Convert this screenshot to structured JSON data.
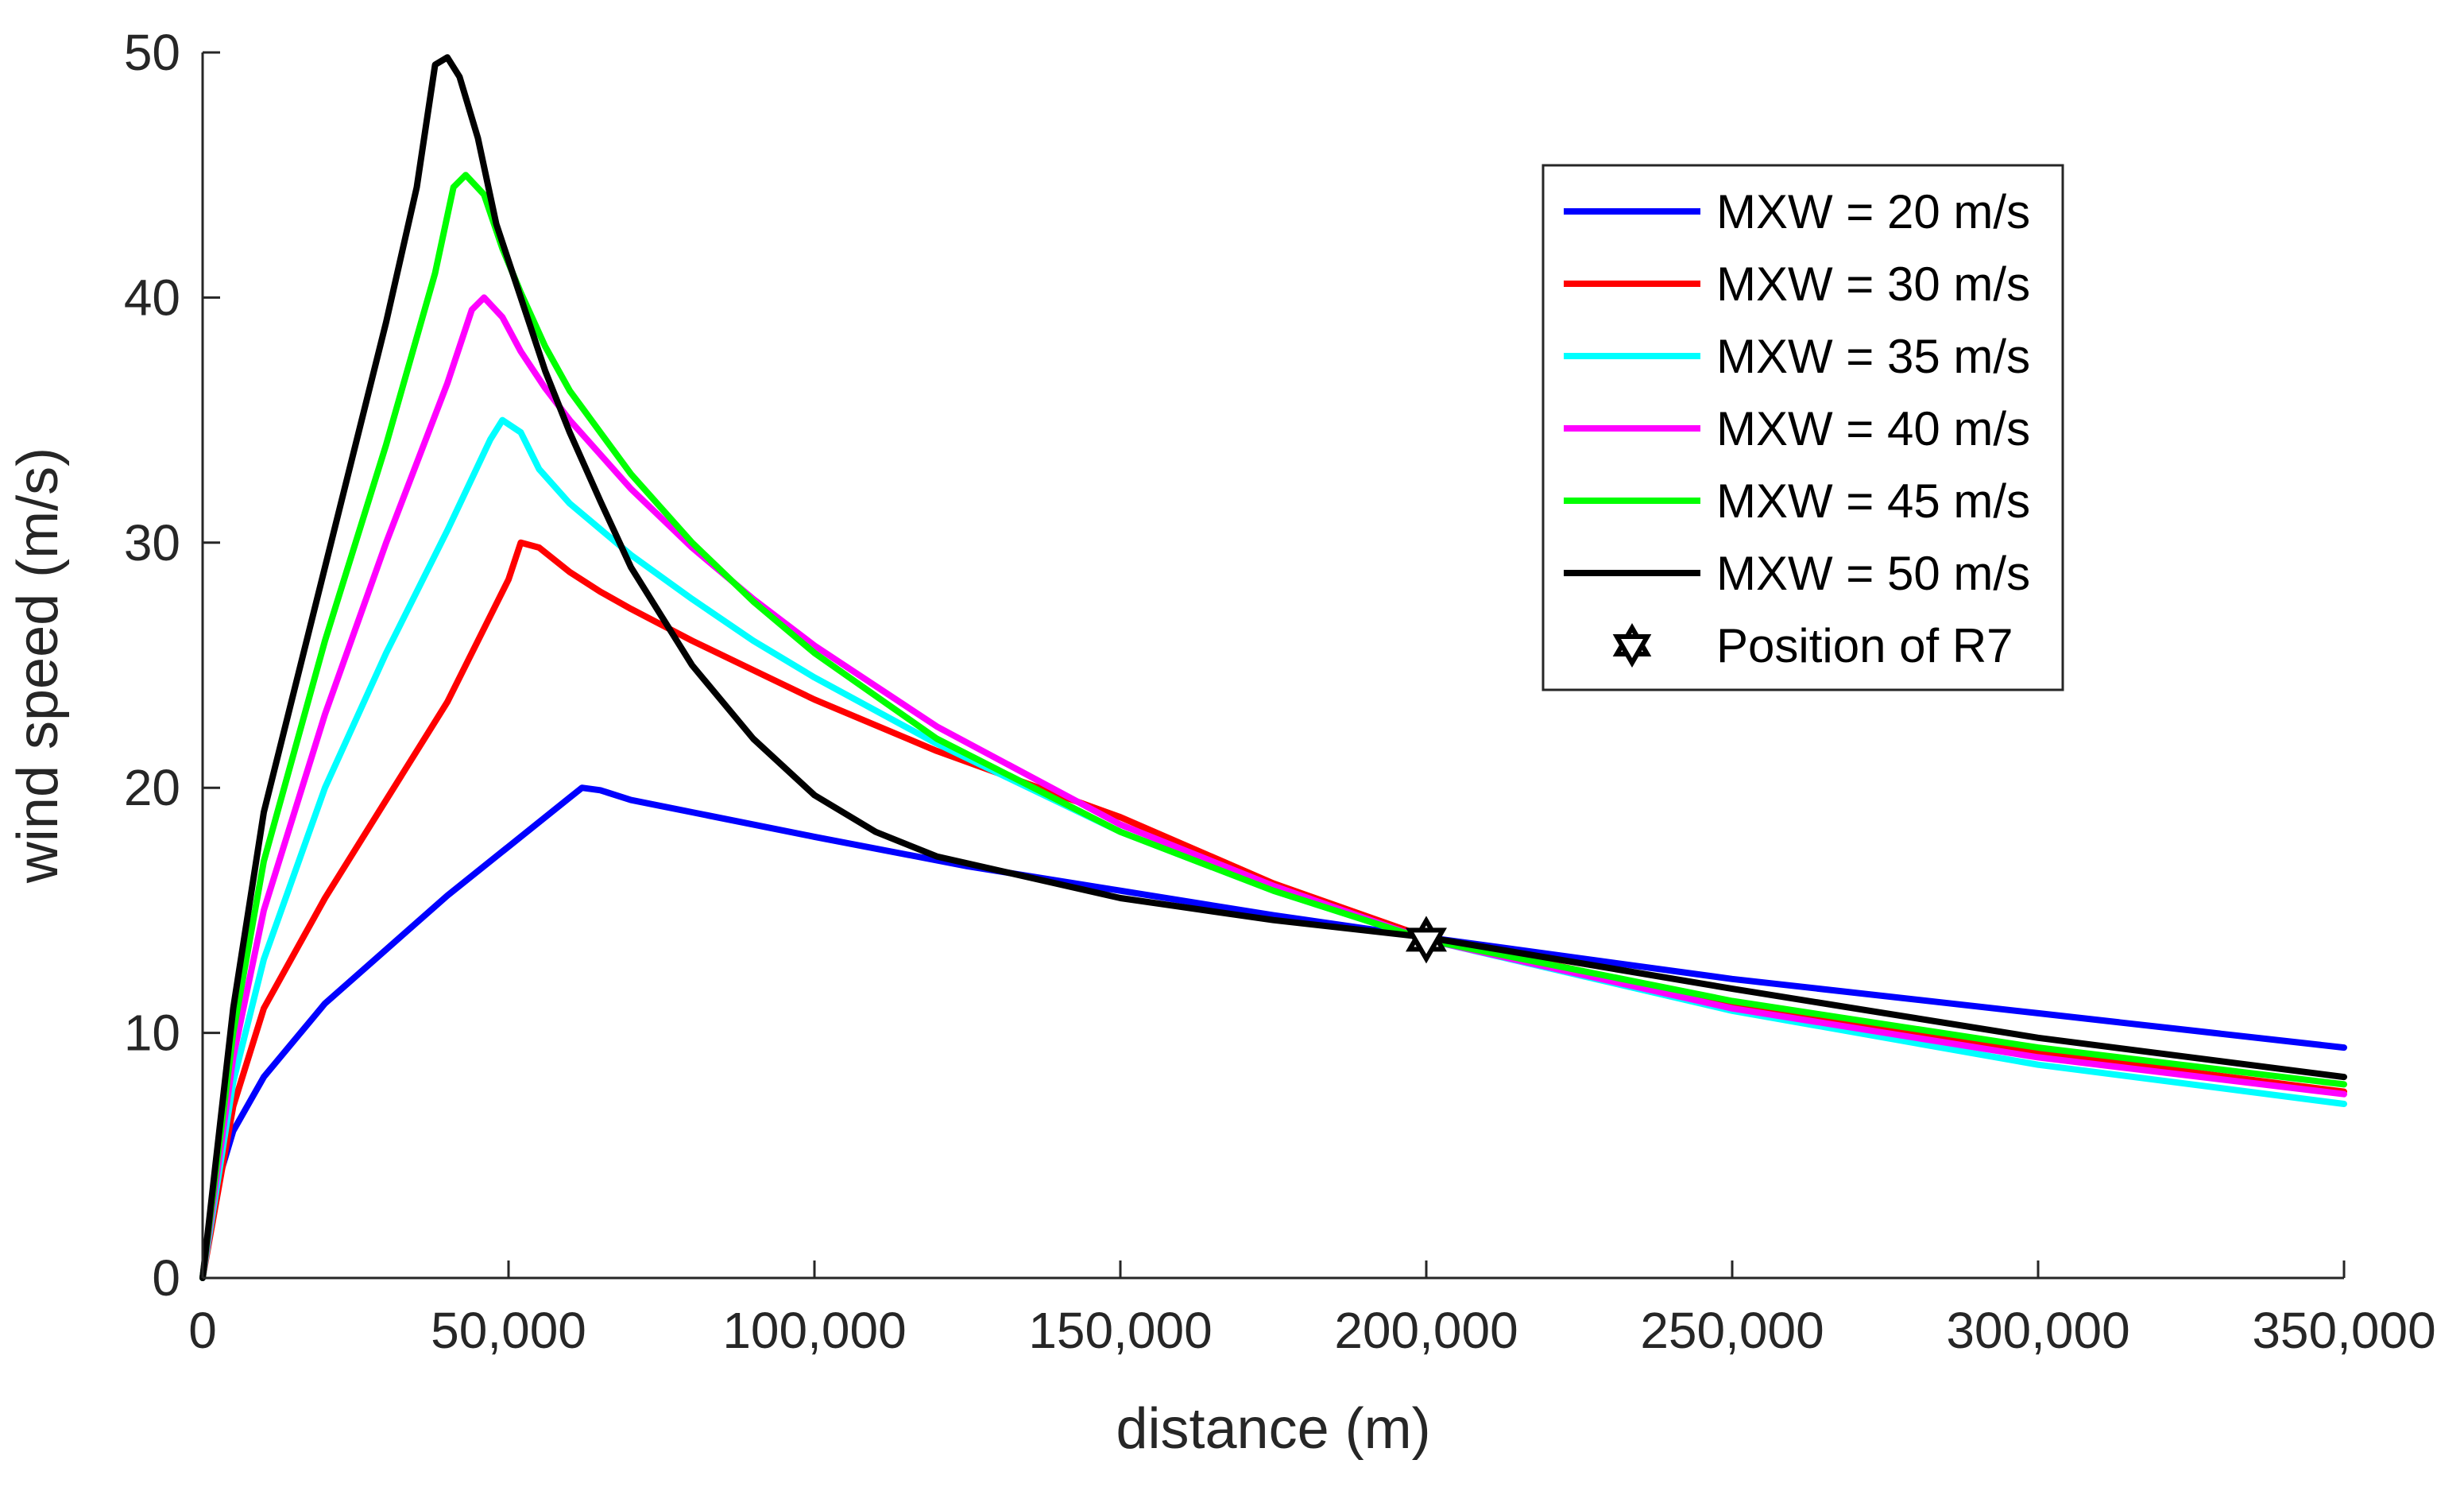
{
  "chart_data": {
    "type": "line",
    "title": "",
    "xlabel": "distance (m)",
    "ylabel": "wind speed (m/s)",
    "xlim": [
      0,
      350000
    ],
    "ylim": [
      0,
      50
    ],
    "xticks": [
      0,
      50000,
      100000,
      150000,
      200000,
      250000,
      300000,
      350000
    ],
    "xtick_labels": [
      "0",
      "50,000",
      "100,000",
      "150,000",
      "200,000",
      "250,000",
      "300,000",
      "350,000"
    ],
    "yticks": [
      0,
      10,
      20,
      30,
      40,
      50
    ],
    "ytick_labels": [
      "0",
      "10",
      "20",
      "30",
      "40",
      "50"
    ],
    "grid": false,
    "legend_position": "top-right",
    "series": [
      {
        "name": "MXW = 20 m/s",
        "color": "#0000ff",
        "x": [
          0,
          2000,
          5000,
          10000,
          20000,
          30000,
          40000,
          50000,
          60000,
          62000,
          65000,
          70000,
          80000,
          100000,
          125000,
          150000,
          175000,
          200000,
          250000,
          300000,
          350000
        ],
        "y": [
          0,
          3.5,
          6,
          8.2,
          11.2,
          13.4,
          15.6,
          17.6,
          19.6,
          20,
          19.9,
          19.5,
          19,
          18,
          16.8,
          15.8,
          14.8,
          13.9,
          12.2,
          10.8,
          9.4
        ]
      },
      {
        "name": "MXW = 30 m/s",
        "color": "#ff0000",
        "x": [
          0,
          5000,
          10000,
          20000,
          30000,
          40000,
          50000,
          52000,
          55000,
          60000,
          65000,
          70000,
          80000,
          90000,
          100000,
          120000,
          150000,
          175000,
          200000,
          250000,
          300000,
          350000
        ],
        "y": [
          0,
          7,
          11,
          15.5,
          19.5,
          23.5,
          28.5,
          30,
          29.8,
          28.8,
          28,
          27.3,
          26,
          24.8,
          23.6,
          21.5,
          18.8,
          16.1,
          13.9,
          11.2,
          9.2,
          7.6
        ]
      },
      {
        "name": "MXW = 35 m/s",
        "color": "#00ffff",
        "x": [
          0,
          5000,
          10000,
          20000,
          30000,
          40000,
          47000,
          49000,
          52000,
          55000,
          60000,
          70000,
          80000,
          90000,
          100000,
          120000,
          150000,
          175000,
          200000,
          250000,
          300000,
          350000
        ],
        "y": [
          0,
          8,
          13,
          20,
          25.5,
          30.5,
          34.2,
          35,
          34.5,
          33,
          31.6,
          29.5,
          27.7,
          26,
          24.5,
          21.8,
          18.2,
          15.8,
          13.8,
          10.9,
          8.7,
          7.1
        ]
      },
      {
        "name": "MXW = 40 m/s",
        "color": "#ff00ff",
        "x": [
          0,
          5000,
          10000,
          20000,
          30000,
          40000,
          44000,
          46000,
          49000,
          52000,
          56000,
          60000,
          70000,
          80000,
          90000,
          100000,
          120000,
          150000,
          175000,
          200000,
          250000,
          300000,
          350000
        ],
        "y": [
          0,
          9,
          15,
          23,
          30,
          36.5,
          39.5,
          40,
          39.2,
          37.8,
          36.3,
          35,
          32.2,
          29.8,
          27.7,
          25.8,
          22.5,
          18.5,
          16,
          13.8,
          11,
          9,
          7.5
        ]
      },
      {
        "name": "MXW = 45 m/s",
        "color": "#00ff00",
        "x": [
          0,
          5000,
          10000,
          20000,
          30000,
          38000,
          41000,
          43000,
          46000,
          49000,
          52000,
          56000,
          60000,
          70000,
          80000,
          90000,
          100000,
          120000,
          150000,
          175000,
          200000,
          250000,
          300000,
          350000
        ],
        "y": [
          0,
          10,
          17,
          26,
          34,
          41,
          44.5,
          45,
          44.2,
          42,
          40.2,
          38,
          36.2,
          32.8,
          30,
          27.6,
          25.5,
          22,
          18.2,
          15.8,
          13.8,
          11.3,
          9.4,
          7.9
        ]
      },
      {
        "name": "MXW = 50 m/s",
        "color": "#000000",
        "x": [
          0,
          5000,
          10000,
          20000,
          30000,
          35000,
          38000,
          40000,
          42000,
          45000,
          48000,
          52000,
          56000,
          60000,
          65000,
          70000,
          80000,
          90000,
          100000,
          110000,
          120000,
          150000,
          175000,
          200000,
          250000,
          300000,
          350000
        ],
        "y": [
          0,
          11,
          19,
          29,
          39,
          44.5,
          49.5,
          49.8,
          49,
          46.5,
          43,
          40,
          37,
          34.5,
          31.7,
          29,
          25,
          22,
          19.7,
          18.2,
          17.2,
          15.5,
          14.6,
          13.9,
          11.8,
          9.8,
          8.2
        ]
      }
    ],
    "markers": [
      {
        "name": "Position of R7",
        "x": 200000,
        "y": 13.8,
        "shape": "hexagram",
        "color": "#000000"
      }
    ]
  }
}
